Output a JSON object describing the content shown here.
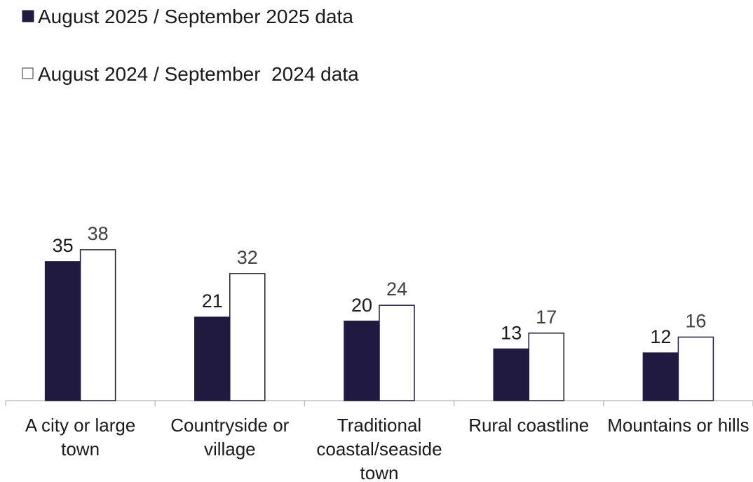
{
  "chart_data": {
    "type": "bar",
    "categories": [
      "A city or large town",
      "Countryside or village",
      "Traditional coastal/seaside town",
      "Rural coastline",
      "Mountains or hills"
    ],
    "series": [
      {
        "name": "August 2025 / September 2025 data",
        "color": "#211a40",
        "values": [
          35,
          21,
          20,
          13,
          12
        ]
      },
      {
        "name": "August 2024 / September  2024 data",
        "color": "#ffffff",
        "values": [
          38,
          32,
          24,
          17,
          16
        ]
      }
    ],
    "legend": "top-left"
  }
}
